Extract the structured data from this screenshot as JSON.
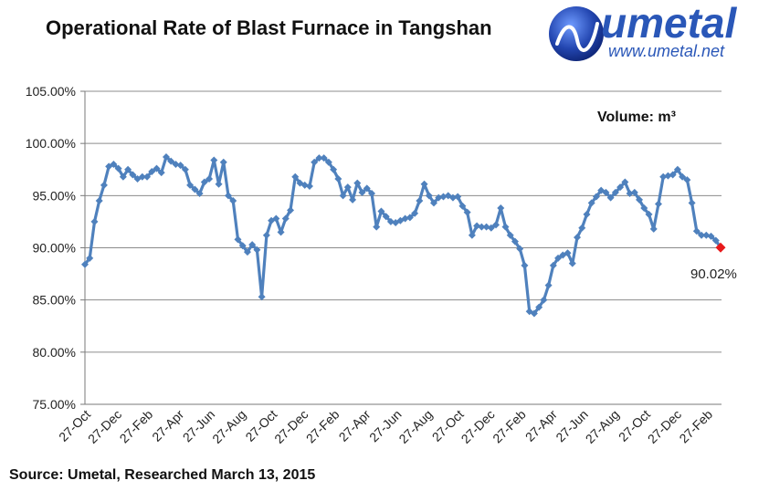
{
  "logo": {
    "word": "umetal",
    "url": "www.umetal.net",
    "color": "#2a57b8"
  },
  "chart_data": {
    "type": "line",
    "title": "Operational Rate of Blast Furnace in Tangshan",
    "unit_label": "Volume: m³",
    "source": "Source: Umetal, Researched  March 13, 2015",
    "yticks": [
      "105.00%",
      "100.00%",
      "95.00%",
      "90.00%",
      "85.00%",
      "80.00%",
      "75.00%"
    ],
    "ylim": [
      75,
      105
    ],
    "x_tick_labels": [
      "27-Oct",
      "27-Dec",
      "27-Feb",
      "27-Apr",
      "27-Jun",
      "27-Aug",
      "27-Oct",
      "27-Dec",
      "27-Feb",
      "27-Apr",
      "27-Jun",
      "27-Aug",
      "27-Oct",
      "27-Dec",
      "27-Feb",
      "27-Apr",
      "27-Jun",
      "27-Aug",
      "27-Oct",
      "27-Dec",
      "27-Feb"
    ],
    "grid": true,
    "line_color": "#4f81bd",
    "last_point_color": "#e8191b",
    "last_point_label": "90.02%",
    "series": [
      {
        "values": [
          88.4,
          89.0,
          92.5,
          94.5,
          96.0,
          97.8,
          98.0,
          97.6,
          96.8,
          97.5,
          97.0,
          96.6,
          96.8,
          96.8,
          97.3,
          97.6,
          97.2,
          98.7,
          98.3,
          98.0,
          97.9,
          97.5,
          96.0,
          95.6,
          95.2,
          96.3,
          96.6,
          98.4,
          96.1,
          98.2,
          95.0,
          94.5,
          90.8,
          90.2,
          89.6,
          90.3,
          89.8,
          85.3,
          91.2,
          92.6,
          92.8,
          91.5,
          92.8,
          93.6,
          96.8,
          96.2,
          96.0,
          95.9,
          98.2,
          98.6,
          98.6,
          98.2,
          97.5,
          96.6,
          95.0,
          95.8,
          94.6,
          96.2,
          95.3,
          95.7,
          95.2,
          92.0,
          93.5,
          93.0,
          92.5,
          92.4,
          92.6,
          92.8,
          92.9,
          93.3,
          94.5,
          96.1,
          95.0,
          94.3,
          94.8,
          94.9,
          95.0,
          94.8,
          94.9,
          94.0,
          93.4,
          91.2,
          92.1,
          92.0,
          92.0,
          91.9,
          92.2,
          93.8,
          92.0,
          91.2,
          90.6,
          89.9,
          88.3,
          83.9,
          83.7,
          84.3,
          85.0,
          86.4,
          88.3,
          89.0,
          89.3,
          89.5,
          88.5,
          91.0,
          91.9,
          93.2,
          94.3,
          94.9,
          95.5,
          95.3,
          94.8,
          95.3,
          95.8,
          96.3,
          95.2,
          95.3,
          94.6,
          93.8,
          93.2,
          91.8,
          94.2,
          96.8,
          96.9,
          97.0,
          97.5,
          96.8,
          96.5,
          94.3,
          91.6,
          91.2,
          91.2,
          91.1,
          90.7,
          90.02
        ]
      }
    ]
  }
}
